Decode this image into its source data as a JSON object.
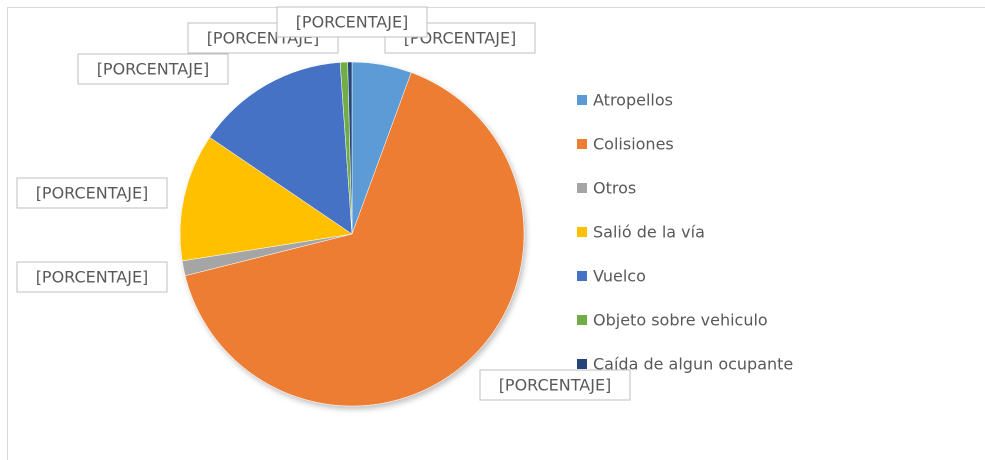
{
  "chart_data": {
    "type": "pie",
    "categories": [
      "Atropellos",
      "Colisiones",
      "Otros",
      "Salió de la vía",
      "Vuelco",
      "Objeto sobre vehiculo",
      "Caída de algun ocupante"
    ],
    "values": [
      5.6,
      65.5,
      1.4,
      12,
      14.4,
      0.7,
      0.4
    ],
    "value_labels": [
      "[PORCENTAJE]",
      "[PORCENTAJE]",
      "[PORCENTAJE]",
      "[PORCENTAJE]",
      "[PORCENTAJE]",
      "[PORCENTAJE]",
      "[PORCENTAJE]"
    ],
    "colors": [
      "#5b9bd5",
      "#ed7d31",
      "#a5a5a5",
      "#ffc000",
      "#4472c4",
      "#70ad47",
      "#264478"
    ],
    "legend": "right"
  }
}
